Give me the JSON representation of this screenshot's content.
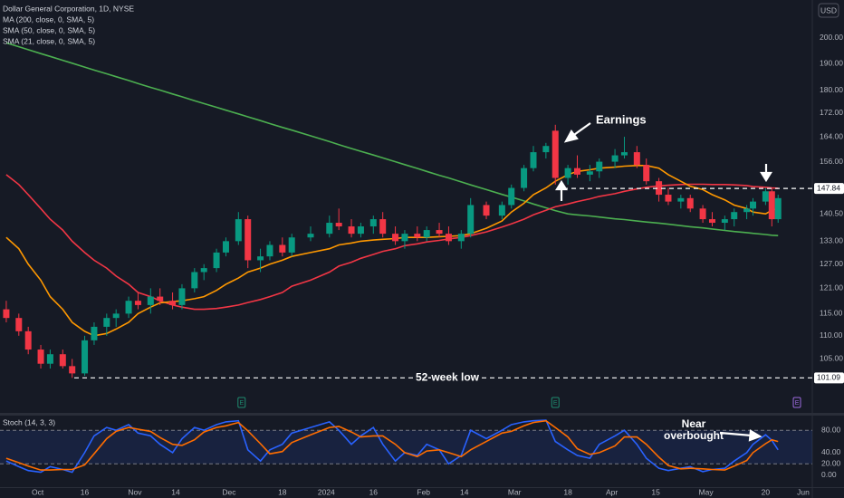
{
  "chart_data": [
    {
      "type": "candlestick",
      "title": "Dollar General Corporation, 1D, NYSE",
      "currency": "USD",
      "x": [
        "2023-09-21",
        "2023-09-25",
        "2023-09-28",
        "2023-10-02",
        "2023-10-05",
        "2023-10-09",
        "2023-10-12",
        "2023-10-16",
        "2023-10-19",
        "2023-10-23",
        "2023-10-26",
        "2023-10-30",
        "2023-11-02",
        "2023-11-06",
        "2023-11-09",
        "2023-11-13",
        "2023-11-16",
        "2023-11-20",
        "2023-11-23",
        "2023-11-27",
        "2023-11-30",
        "2023-12-04",
        "2023-12-07",
        "2023-12-11",
        "2023-12-14",
        "2023-12-18",
        "2023-12-21",
        "2023-12-27",
        "2024-01-02",
        "2024-01-05",
        "2024-01-09",
        "2024-01-12",
        "2024-01-16",
        "2024-01-19",
        "2024-01-23",
        "2024-01-26",
        "2024-01-30",
        "2024-02-02",
        "2024-02-06",
        "2024-02-09",
        "2024-02-13",
        "2024-02-16",
        "2024-02-21",
        "2024-02-26",
        "2024-02-29",
        "2024-03-04",
        "2024-03-07",
        "2024-03-11",
        "2024-03-14",
        "2024-03-18",
        "2024-03-21",
        "2024-03-25",
        "2024-03-28",
        "2024-04-02",
        "2024-04-05",
        "2024-04-09",
        "2024-04-12",
        "2024-04-16",
        "2024-04-19",
        "2024-04-23",
        "2024-04-26",
        "2024-04-30",
        "2024-05-03",
        "2024-05-07",
        "2024-05-10",
        "2024-05-14",
        "2024-05-16",
        "2024-05-20",
        "2024-05-22",
        "2024-05-24"
      ],
      "open": [
        116,
        114,
        111,
        107,
        104,
        106,
        103.5,
        102,
        109,
        112,
        114,
        115,
        118,
        117,
        119,
        118,
        117,
        121,
        125,
        126,
        130,
        133,
        139,
        128,
        129,
        132,
        130,
        134,
        135,
        138,
        137,
        135,
        137,
        139,
        135,
        133,
        135,
        134,
        136,
        135,
        133,
        135,
        143,
        140,
        143,
        148,
        154,
        159,
        166,
        151,
        154,
        152,
        153,
        156,
        158,
        159,
        155,
        150,
        146,
        144,
        145,
        142,
        139,
        138,
        139,
        141,
        142,
        144,
        147,
        139
      ],
      "high": [
        118,
        115,
        112,
        108,
        107,
        107,
        105,
        110,
        113,
        115,
        116,
        119,
        120,
        121,
        121,
        120,
        122,
        126,
        127,
        131,
        134,
        141,
        140,
        131,
        133,
        134,
        135,
        137,
        140,
        142,
        139,
        138,
        140,
        141,
        137,
        136,
        137,
        137,
        138,
        137,
        136,
        145,
        144,
        144,
        149,
        155,
        161,
        162,
        168,
        155,
        158,
        155,
        157,
        160,
        164,
        161,
        157,
        151,
        148,
        146,
        146,
        143,
        141,
        140,
        142,
        143,
        145,
        148,
        148,
        146
      ],
      "low": [
        113,
        110,
        106,
        103,
        103,
        103,
        101.09,
        101.5,
        108,
        110,
        112,
        114,
        116,
        115,
        117,
        116,
        116,
        120,
        123,
        125,
        129,
        132,
        126,
        125,
        128,
        129,
        129,
        133,
        134,
        136,
        134,
        134,
        135,
        134,
        132,
        131,
        133,
        133,
        134,
        132,
        131,
        134,
        139,
        139,
        142,
        147,
        153,
        157,
        149,
        149,
        151,
        150,
        151,
        154,
        157,
        154,
        149,
        144,
        143,
        142,
        141,
        138,
        137,
        136,
        137,
        139,
        140,
        143,
        137,
        138
      ],
      "close": [
        114,
        111,
        107,
        104,
        106,
        103.5,
        102,
        109,
        112,
        114,
        115,
        118,
        117,
        119,
        118,
        117,
        121,
        125,
        126,
        130,
        133,
        139,
        128,
        129,
        132,
        130,
        134,
        135,
        138,
        137,
        135,
        137,
        139,
        135,
        133,
        135,
        134,
        136,
        135,
        133,
        135,
        143,
        140,
        143,
        148,
        154,
        159,
        161,
        151,
        154,
        152,
        153,
        156,
        158,
        159,
        155,
        150,
        146,
        144,
        145,
        142,
        139,
        138,
        139,
        141,
        142,
        144,
        147,
        139,
        145
      ],
      "up_color": "#089981",
      "down_color": "#f23645",
      "series": [
        {
          "name": "MA (200, close, 0, SMA, 5)",
          "color": "#4caf50",
          "values": [
            198,
            196.5,
            195.3,
            193.8,
            192.7,
            191.2,
            190.1,
            188.6,
            187.5,
            186.1,
            185,
            183.6,
            182.5,
            181.1,
            180.1,
            178.7,
            177.7,
            176.3,
            175.3,
            174,
            173,
            171.7,
            170.7,
            169.4,
            168.4,
            167.1,
            166.2,
            164.3,
            162.4,
            161.4,
            160.2,
            159.3,
            158.1,
            157.2,
            156,
            155.1,
            153.9,
            153,
            151.8,
            151,
            149.8,
            148.9,
            147.5,
            146.1,
            145.3,
            144.2,
            143.3,
            142.2,
            141.4,
            140.5,
            140.2,
            139.9,
            139.6,
            139.1,
            138.9,
            138.5,
            138.2,
            137.9,
            137.6,
            137.2,
            136.9,
            136.6,
            136.3,
            135.9,
            135.6,
            135.3,
            135.1,
            134.8,
            134.6,
            134.5
          ]
        },
        {
          "name": "SMA (50, close, 0, SMA, 5)",
          "color": "#f23645",
          "values": [
            152,
            149,
            146,
            142,
            139,
            136,
            133,
            130,
            128,
            126,
            124,
            122,
            120,
            119,
            118,
            117,
            116.5,
            116,
            116,
            116.2,
            116.5,
            117,
            117.6,
            118.3,
            119,
            120,
            121.5,
            123,
            125,
            126.5,
            127.5,
            128.5,
            129.5,
            130.3,
            131,
            131.8,
            132.3,
            132.8,
            133.2,
            133.6,
            134,
            134.5,
            135.5,
            136.8,
            137.7,
            139,
            140.2,
            141.5,
            142.5,
            143.3,
            144,
            144.8,
            145.5,
            146.3,
            147,
            147.7,
            148.2,
            148.6,
            148.8,
            149,
            149.1,
            149.1,
            149,
            149,
            148.9,
            148.7,
            148.4,
            148.2,
            148,
            147.9
          ]
        },
        {
          "name": "SMA (21, close, 0, SMA, 5)",
          "color": "#ff9800",
          "values": [
            134,
            131,
            127,
            123,
            119,
            116,
            113,
            111,
            110,
            110.5,
            111.5,
            113,
            115,
            116.5,
            117.5,
            117.8,
            118,
            118.5,
            119,
            120.5,
            122,
            123.5,
            125,
            126,
            127,
            128,
            129,
            130,
            131,
            132,
            132.5,
            133,
            133.3,
            133.5,
            133.7,
            134,
            134,
            134,
            134.2,
            134.3,
            134.5,
            135,
            136.5,
            138.5,
            141,
            143.5,
            146,
            148,
            150,
            152,
            153,
            153.5,
            154,
            154.3,
            154.6,
            154.8,
            154.8,
            154,
            152,
            150,
            148.5,
            147.5,
            146,
            144.5,
            143,
            142,
            141,
            140.5,
            141.5,
            142
          ]
        }
      ],
      "log_scale": true,
      "xlim": [
        "2023-09-19",
        "2024-06-14"
      ],
      "ylim": [
        94.4,
        215.8
      ],
      "yticks": [
        {
          "value": 200,
          "label": "200.00"
        },
        {
          "value": 190,
          "label": "190.00"
        },
        {
          "value": 180,
          "label": "180.00"
        },
        {
          "value": 172,
          "label": "172.00"
        },
        {
          "value": 164,
          "label": "164.00"
        },
        {
          "value": 156,
          "label": "156.00"
        },
        {
          "value": 140.5,
          "label": "140.50"
        },
        {
          "value": 133,
          "label": "133.00"
        },
        {
          "value": 127,
          "label": "127.00"
        },
        {
          "value": 121,
          "label": "121.00"
        },
        {
          "value": 115,
          "label": "115.00"
        },
        {
          "value": 110,
          "label": "110.00"
        },
        {
          "value": 105,
          "label": "105.00"
        }
      ],
      "hlines": [
        147.84,
        101.09
      ],
      "annotations": [
        "Earnings",
        "52-week low"
      ],
      "earnings_markers": {
        "label": "E",
        "x": [
          "2023-12-05",
          "2024-03-14",
          "2024-05-30"
        ]
      }
    },
    {
      "type": "line",
      "title": "Stoch (14, 3, 3)",
      "x": [
        "2023-09-21",
        "2023-09-25",
        "2023-09-28",
        "2023-10-02",
        "2023-10-05",
        "2023-10-09",
        "2023-10-12",
        "2023-10-16",
        "2023-10-19",
        "2023-10-23",
        "2023-10-26",
        "2023-10-30",
        "2023-11-02",
        "2023-11-06",
        "2023-11-09",
        "2023-11-13",
        "2023-11-16",
        "2023-11-20",
        "2023-11-23",
        "2023-11-27",
        "2023-11-30",
        "2023-12-04",
        "2023-12-07",
        "2023-12-11",
        "2023-12-14",
        "2023-12-18",
        "2023-12-21",
        "2023-12-27",
        "2024-01-02",
        "2024-01-05",
        "2024-01-09",
        "2024-01-12",
        "2024-01-16",
        "2024-01-19",
        "2024-01-23",
        "2024-01-26",
        "2024-01-30",
        "2024-02-02",
        "2024-02-06",
        "2024-02-09",
        "2024-02-13",
        "2024-02-16",
        "2024-02-21",
        "2024-02-26",
        "2024-02-29",
        "2024-03-04",
        "2024-03-07",
        "2024-03-11",
        "2024-03-14",
        "2024-03-18",
        "2024-03-21",
        "2024-03-25",
        "2024-03-28",
        "2024-04-02",
        "2024-04-05",
        "2024-04-09",
        "2024-04-12",
        "2024-04-16",
        "2024-04-19",
        "2024-04-23",
        "2024-04-26",
        "2024-04-30",
        "2024-05-03",
        "2024-05-07",
        "2024-05-10",
        "2024-05-14",
        "2024-05-16",
        "2024-05-20",
        "2024-05-22",
        "2024-05-24"
      ],
      "series": [
        {
          "color": "#2962ff",
          "values": [
            25,
            15,
            8,
            5,
            15,
            10,
            5,
            40,
            70,
            85,
            80,
            90,
            75,
            70,
            55,
            40,
            65,
            85,
            80,
            90,
            95,
            97,
            45,
            25,
            45,
            55,
            75,
            85,
            95,
            80,
            55,
            70,
            85,
            55,
            25,
            40,
            35,
            55,
            45,
            20,
            35,
            80,
            65,
            80,
            90,
            95,
            97,
            98,
            60,
            45,
            35,
            30,
            55,
            70,
            80,
            55,
            30,
            12,
            8,
            12,
            15,
            6,
            10,
            12,
            25,
            40,
            55,
            72,
            62,
            45
          ]
        },
        {
          "color": "#ff6d00",
          "values": [
            30,
            22,
            16,
            9,
            9,
            10,
            10,
            18,
            38,
            65,
            78,
            85,
            82,
            78,
            67,
            55,
            53,
            63,
            77,
            85,
            88,
            94,
            79,
            56,
            38,
            42,
            58,
            72,
            85,
            87,
            77,
            68,
            70,
            70,
            55,
            40,
            33,
            43,
            45,
            40,
            33,
            45,
            60,
            75,
            78,
            88,
            94,
            97,
            85,
            68,
            47,
            37,
            40,
            52,
            68,
            68,
            55,
            32,
            17,
            11,
            12,
            11,
            10,
            9,
            16,
            26,
            40,
            56,
            63,
            60
          ]
        }
      ],
      "xlim": [
        "2023-09-19",
        "2024-06-14"
      ],
      "ylim": [
        -20,
        103
      ],
      "yticks": [
        {
          "value": 80,
          "label": "80.00"
        },
        {
          "value": 40,
          "label": "40.00"
        },
        {
          "value": 20,
          "label": "20.00"
        },
        {
          "value": 0,
          "label": "0.00"
        }
      ],
      "hlines": [
        80,
        20
      ],
      "annotations": [
        "Near overbought"
      ],
      "xticks": [
        {
          "value": "2023-10-01",
          "label": "Oct"
        },
        {
          "value": "2023-10-16",
          "label": "16"
        },
        {
          "value": "2023-11-01",
          "label": "Nov"
        },
        {
          "value": "2023-11-14",
          "label": "14"
        },
        {
          "value": "2023-12-01",
          "label": "Dec"
        },
        {
          "value": "2023-12-18",
          "label": "18"
        },
        {
          "value": "2024-01-01",
          "label": "2024"
        },
        {
          "value": "2024-01-16",
          "label": "16"
        },
        {
          "value": "2024-02-01",
          "label": "Feb"
        },
        {
          "value": "2024-02-14",
          "label": "14"
        },
        {
          "value": "2024-03-01",
          "label": "Mar"
        },
        {
          "value": "2024-03-18",
          "label": "18"
        },
        {
          "value": "2024-04-01",
          "label": "Apr"
        },
        {
          "value": "2024-04-15",
          "label": "15"
        },
        {
          "value": "2024-05-01",
          "label": "May"
        },
        {
          "value": "2024-05-20",
          "label": "20"
        },
        {
          "value": "2024-06-01",
          "label": "Jun"
        }
      ]
    }
  ]
}
